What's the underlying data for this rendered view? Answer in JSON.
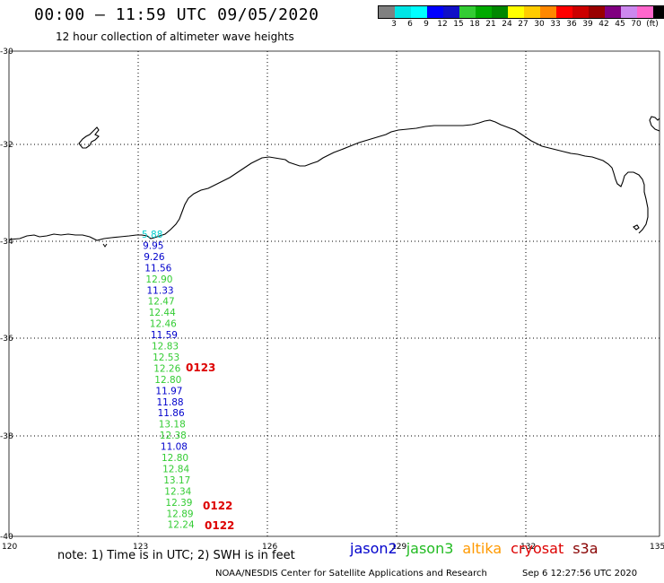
{
  "header": {
    "title": "00:00 – 11:59 UTC 09/05/2020",
    "subtitle": "12 hour collection of altimeter wave heights"
  },
  "colorbar": {
    "colors": [
      "#808080",
      "#00e5e5",
      "#00ffff",
      "#0000ff",
      "#1010c8",
      "#33cc33",
      "#00aa00",
      "#008800",
      "#ffff00",
      "#ffcc00",
      "#ff8800",
      "#ff0000",
      "#cc0000",
      "#990000",
      "#800080",
      "#cc88ee",
      "#ff66cc",
      "#000000"
    ],
    "labels": [
      "3",
      "6",
      "9",
      "12",
      "15",
      "18",
      "21",
      "24",
      "27",
      "30",
      "33",
      "36",
      "39",
      "42",
      "45",
      "70",
      "(ft)"
    ]
  },
  "axes": {
    "lon_labels": [
      "120",
      "123",
      "126",
      "129",
      "132",
      "135"
    ],
    "lat_labels": [
      "-30",
      "-32",
      "-34",
      "-36",
      "-38",
      "-40"
    ]
  },
  "observations": [
    {
      "value": "5.88",
      "color": "#00cccc"
    },
    {
      "value": "9.95",
      "color": "#0000cc"
    },
    {
      "value": "9.26",
      "color": "#0000cc"
    },
    {
      "value": "11.56",
      "color": "#0000cc"
    },
    {
      "value": "12.90",
      "color": "#33cc33"
    },
    {
      "value": "11.33",
      "color": "#0000cc"
    },
    {
      "value": "12.47",
      "color": "#33cc33"
    },
    {
      "value": "12.44",
      "color": "#33cc33"
    },
    {
      "value": "12.46",
      "color": "#33cc33"
    },
    {
      "value": "11.59",
      "color": "#0000cc"
    },
    {
      "value": "12.83",
      "color": "#33cc33"
    },
    {
      "value": "12.53",
      "color": "#33cc33"
    },
    {
      "value": "12.26",
      "color": "#33cc33"
    },
    {
      "value": "12.80",
      "color": "#33cc33"
    },
    {
      "value": "11.97",
      "color": "#0000cc"
    },
    {
      "value": "11.88",
      "color": "#0000cc"
    },
    {
      "value": "11.86",
      "color": "#0000cc"
    },
    {
      "value": "13.18",
      "color": "#33cc33"
    },
    {
      "value": "12.38",
      "color": "#33cc33"
    },
    {
      "value": "11.08",
      "color": "#0000cc"
    },
    {
      "value": "12.80",
      "color": "#33cc33"
    },
    {
      "value": "12.84",
      "color": "#33cc33"
    },
    {
      "value": "13.17",
      "color": "#33cc33"
    },
    {
      "value": "12.34",
      "color": "#33cc33"
    },
    {
      "value": "12.39",
      "color": "#33cc33"
    },
    {
      "value": "12.89",
      "color": "#33cc33"
    },
    {
      "value": "12.24",
      "color": "#33cc33"
    }
  ],
  "pass_times": [
    "0123",
    "0122",
    "0122"
  ],
  "pass_time_color": "#dd0000",
  "note": "note:  1) Time is in UTC;  2) SWH is in feet",
  "legend": [
    {
      "label": "jason2",
      "color": "#0000cc"
    },
    {
      "label": "jason3",
      "color": "#22bb22"
    },
    {
      "label": "altika",
      "color": "#ff9900"
    },
    {
      "label": "cryosat",
      "color": "#dd0000"
    },
    {
      "label": "s3a",
      "color": "#880000"
    }
  ],
  "footer": {
    "credit": "NOAA/NESDIS Center for Satellite Applications and Research",
    "timestamp": "Sep  6 12:27:56 UTC 2020"
  }
}
